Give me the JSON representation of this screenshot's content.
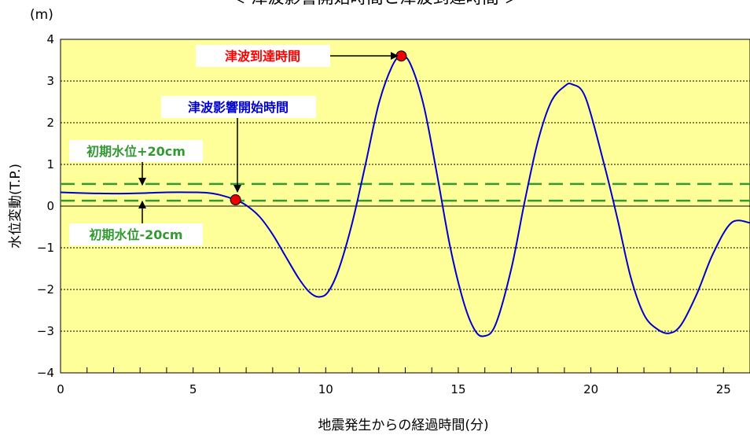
{
  "chart_data": {
    "type": "line",
    "title": "＜ 津波影響開始時間と津波到達時間 ＞",
    "xlabel": "地震発生からの経過時間(分)",
    "ylabel": "水位変動(T.P.)",
    "y_unit": "(m)",
    "xlim": [
      0,
      26
    ],
    "ylim": [
      -4,
      4
    ],
    "x_ticks": [
      0,
      5,
      10,
      15,
      20,
      25
    ],
    "x_minor_step": 1,
    "y_ticks": [
      4,
      3,
      2,
      1,
      0,
      -1,
      -2,
      -3,
      -4
    ],
    "grid": "dotted horizontal",
    "series": [
      {
        "color": "#0000cc",
        "points": [
          [
            0,
            0.33
          ],
          [
            1,
            0.31
          ],
          [
            2,
            0.3
          ],
          [
            3,
            0.31
          ],
          [
            4,
            0.33
          ],
          [
            5,
            0.33
          ],
          [
            5.5,
            0.32
          ],
          [
            6,
            0.27
          ],
          [
            6.6,
            0.15
          ],
          [
            7,
            0.02
          ],
          [
            7.5,
            -0.25
          ],
          [
            8,
            -0.68
          ],
          [
            8.5,
            -1.22
          ],
          [
            9,
            -1.75
          ],
          [
            9.4,
            -2.07
          ],
          [
            9.75,
            -2.18
          ],
          [
            10.1,
            -2.05
          ],
          [
            10.5,
            -1.5
          ],
          [
            11,
            -0.4
          ],
          [
            11.5,
            1.0
          ],
          [
            12,
            2.45
          ],
          [
            12.5,
            3.35
          ],
          [
            12.85,
            3.6
          ],
          [
            13.2,
            3.4
          ],
          [
            13.7,
            2.4
          ],
          [
            14.2,
            0.75
          ],
          [
            14.7,
            -1.0
          ],
          [
            15.2,
            -2.3
          ],
          [
            15.6,
            -2.95
          ],
          [
            15.95,
            -3.12
          ],
          [
            16.4,
            -2.85
          ],
          [
            17,
            -1.5
          ],
          [
            17.5,
            0.1
          ],
          [
            18,
            1.55
          ],
          [
            18.5,
            2.5
          ],
          [
            19,
            2.87
          ],
          [
            19.3,
            2.92
          ],
          [
            19.8,
            2.6
          ],
          [
            20.5,
            1.0
          ],
          [
            21,
            -0.3
          ],
          [
            21.5,
            -1.7
          ],
          [
            22,
            -2.6
          ],
          [
            22.5,
            -2.95
          ],
          [
            22.95,
            -3.05
          ],
          [
            23.4,
            -2.85
          ],
          [
            24,
            -2.1
          ],
          [
            24.6,
            -1.15
          ],
          [
            25.3,
            -0.4
          ],
          [
            26,
            -0.4
          ]
        ]
      }
    ],
    "reference_lines": [
      {
        "label": "初期水位+20cm",
        "y": 0.53,
        "color": "#339933",
        "style": "dashed"
      },
      {
        "label": "初期水位-20cm",
        "y": 0.13,
        "color": "#339933",
        "style": "dashed"
      }
    ],
    "markers": [
      {
        "label": "津波影響開始時間",
        "x": 6.6,
        "y": 0.15,
        "label_color": "#0000cc"
      },
      {
        "label": "津波到達時間",
        "x": 12.85,
        "y": 3.6,
        "label_color": "#ff0000"
      }
    ],
    "colors": {
      "plot_background": "#ffff99",
      "curve": "#0000cc",
      "marker_fill": "#ee0000",
      "reference_line": "#339933"
    }
  }
}
